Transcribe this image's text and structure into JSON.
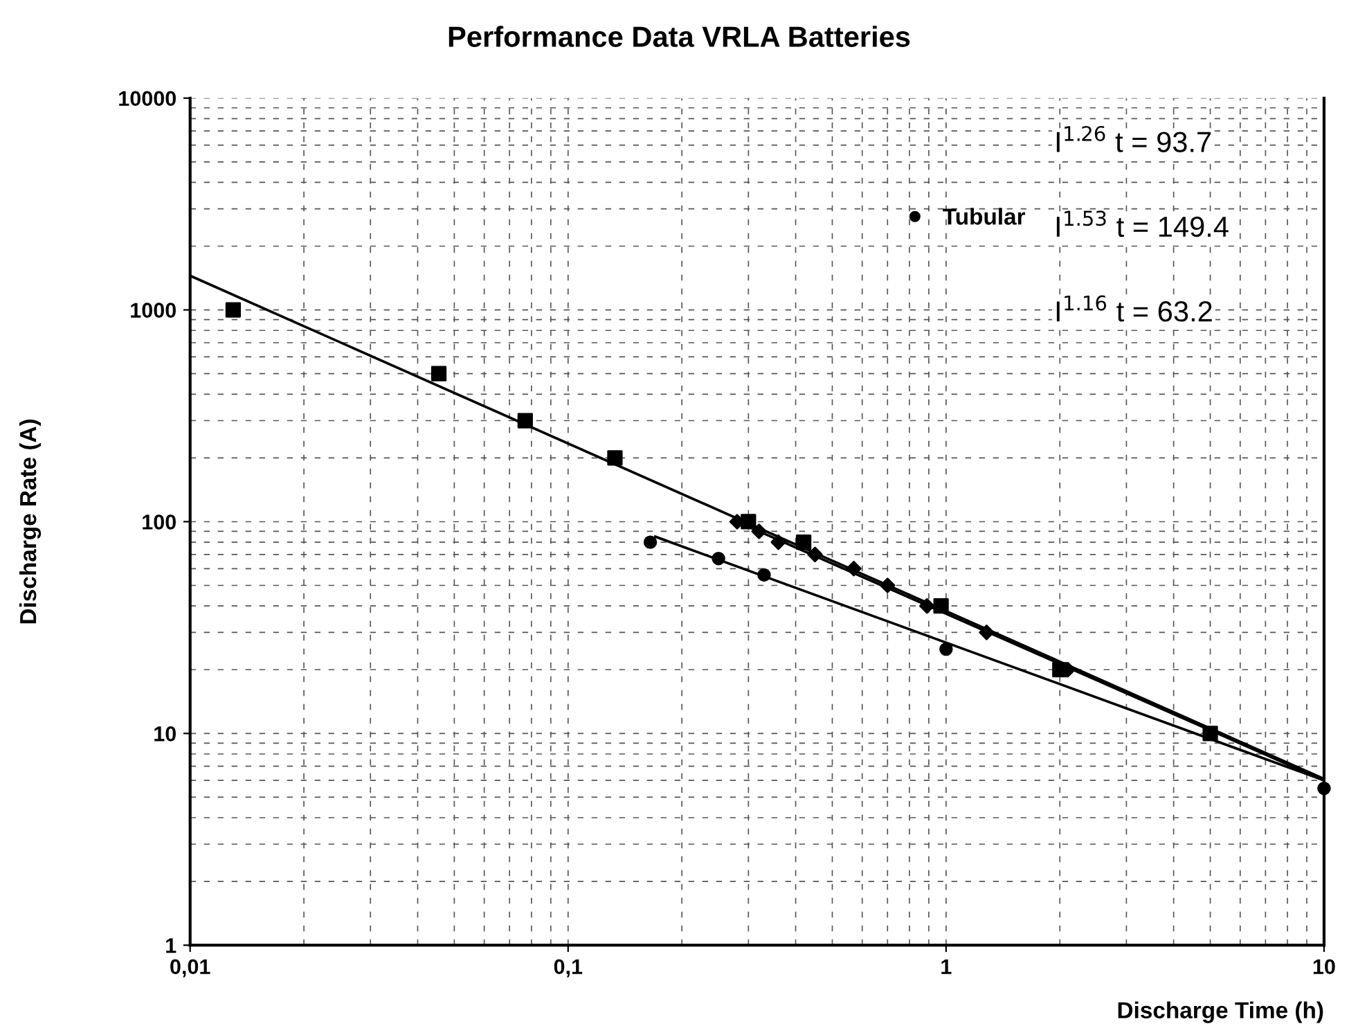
{
  "chart_data": {
    "type": "scatter",
    "title": "Performance Data VRLA Batteries",
    "xlabel": "Discharge Time (h)",
    "ylabel": "Discharge Rate (A)",
    "log": "xy",
    "grid": true,
    "legend": "top right",
    "xlim": [
      0.01,
      10
    ],
    "xticks": [
      {
        "value": 0.01,
        "label": "0,01"
      },
      {
        "value": 0.1,
        "label": "0,1"
      },
      1,
      10
    ],
    "ylim": [
      1,
      10000
    ],
    "yticks": [
      1,
      10,
      100,
      1000,
      10000
    ],
    "annotations": [
      "I$^{1.26}$ t = 93.7",
      "I$^{1.53}$ t = 149.4",
      "I$^{1.16}$ t = 63.2"
    ],
    "series": [
      {
        "marker": "diamond",
        "color": "#000000",
        "x": [
          0.28,
          0.32,
          0.36,
          0.45,
          0.57,
          0.7,
          0.89,
          1.28,
          2.1
        ],
        "values": [
          100,
          90,
          80,
          70,
          60,
          50,
          40,
          30,
          20
        ]
      },
      {
        "marker": "circle",
        "name": "Tubular",
        "color": "#000000",
        "x": [
          0.165,
          0.25,
          0.33,
          1,
          10
        ],
        "values": [
          80,
          67,
          56,
          25,
          5.5
        ]
      },
      {
        "marker": "square",
        "color": "#000000",
        "x": [
          0.013,
          0.0455,
          0.077,
          0.133,
          0.3,
          0.42,
          0.97,
          2.0,
          5.0
        ],
        "values": [
          1000,
          500,
          300,
          200,
          100,
          80,
          40,
          20,
          10
        ]
      },
      {
        "type": "line",
        "marker": "none",
        "color": "#000000",
        "x": [
          0.28,
          10
        ],
        "values": [
          100,
          6
        ]
      },
      {
        "type": "line",
        "marker": "none",
        "color": "#000000",
        "x": [
          0.17,
          10
        ],
        "values": [
          85,
          6
        ]
      },
      {
        "type": "line",
        "marker": "none",
        "color": "#000000",
        "x": [
          0.01,
          10
        ],
        "values": [
          1450,
          6.1
        ]
      }
    ]
  }
}
